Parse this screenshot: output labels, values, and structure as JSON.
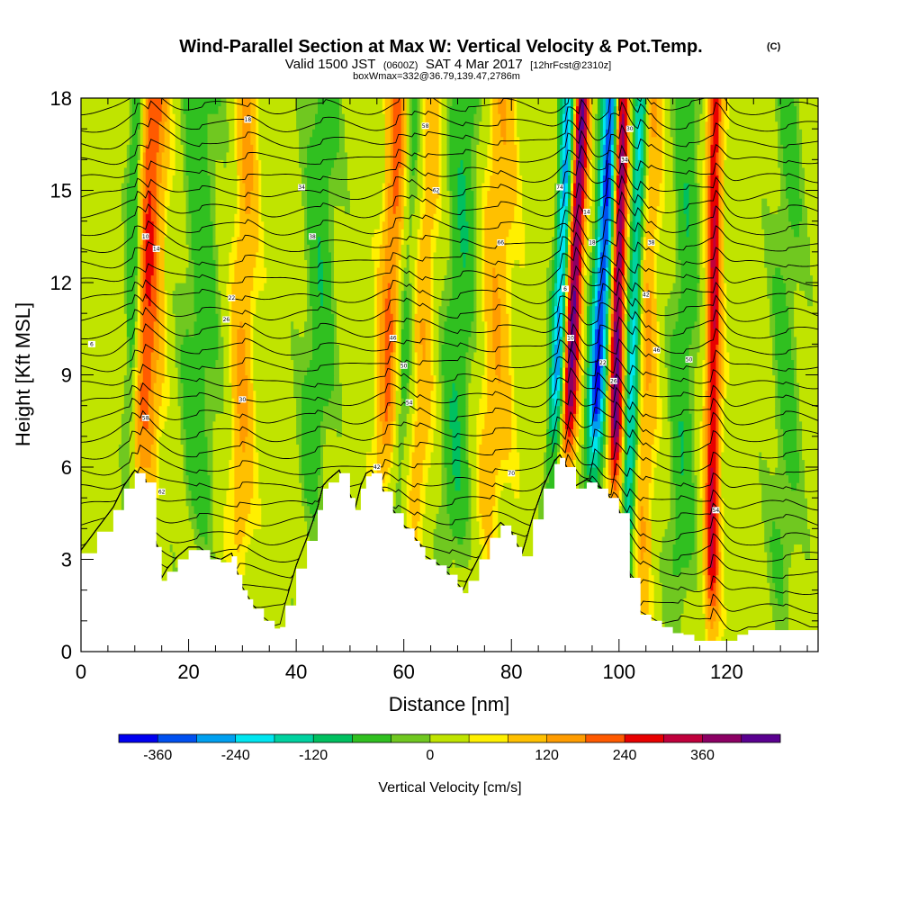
{
  "header": {
    "title_main": "Wind-Parallel Section at Max W: Vertical Velocity & Pot.Temp.",
    "title_mark": "(C)",
    "subtitle_a": "Valid 1500 JST",
    "subtitle_b": "(0600Z)",
    "subtitle_c": "SAT 4 Mar 2017",
    "subtitle_d": "[12hrFcst@2310z]",
    "boxline": "boxWmax=332@36.79,139.47,2786m"
  },
  "chart_data": {
    "type": "heatmap",
    "xlabel": "Distance [nm]",
    "ylabel": "Height [Kft MSL]",
    "xlim": [
      0,
      137
    ],
    "ylim": [
      0,
      18
    ],
    "x_ticks": [
      "0",
      "20",
      "40",
      "60",
      "80",
      "100",
      "120"
    ],
    "y_ticks": [
      "0",
      "3",
      "6",
      "9",
      "12",
      "15",
      "18"
    ],
    "colorbar": {
      "title": "Vertical Velocity [cm/s]",
      "tick_labels": [
        "-360",
        "-240",
        "-120",
        "0",
        "120",
        "240",
        "360"
      ],
      "levels": [
        -420,
        -360,
        -300,
        -240,
        -180,
        -120,
        -60,
        -30,
        30,
        60,
        120,
        180,
        240,
        300,
        360,
        420
      ],
      "colors": [
        "#0000f0",
        "#0050f0",
        "#00a0f0",
        "#00e6f0",
        "#00d2a0",
        "#00c060",
        "#30c020",
        "#70c820",
        "#c0e400",
        "#fff000",
        "#ffc000",
        "#ff9c00",
        "#ff5a00",
        "#e80000",
        "#c0003c",
        "#8c0064",
        "#5a0090"
      ]
    },
    "updraft_axes": [
      {
        "x": 11.5,
        "w": 2.8,
        "peak": 260,
        "lean": 0.15
      },
      {
        "x": 30,
        "w": 2.2,
        "peak": 120,
        "lean": 0.1
      },
      {
        "x": 57,
        "w": 2.0,
        "peak": 200,
        "lean": 0.2
      },
      {
        "x": 63,
        "w": 2.5,
        "peak": 110,
        "lean": 0.15
      },
      {
        "x": 77,
        "w": 3.0,
        "peak": 110,
        "lean": 0.1
      },
      {
        "x": 91,
        "w": 1.4,
        "peak": 420,
        "lean": 0.2
      },
      {
        "x": 99.5,
        "w": 1.3,
        "peak": 420,
        "lean": 0.1
      },
      {
        "x": 105,
        "w": 2.0,
        "peak": 120,
        "lean": 0.1
      },
      {
        "x": 117.5,
        "w": 1.4,
        "peak": 300,
        "lean": 0.03
      }
    ],
    "downdraft_axes": [
      {
        "x": 9.5,
        "w": 1.6,
        "peak": -220,
        "lean": 0.1
      },
      {
        "x": 22,
        "w": 3.5,
        "peak": -90,
        "lean": 0.05
      },
      {
        "x": 44,
        "w": 3.0,
        "peak": -100,
        "lean": 0.1
      },
      {
        "x": 60,
        "w": 2.0,
        "peak": -110,
        "lean": 0.2
      },
      {
        "x": 70,
        "w": 3.0,
        "peak": -110,
        "lean": 0.15
      },
      {
        "x": 88.5,
        "w": 1.3,
        "peak": -320,
        "lean": 0.2
      },
      {
        "x": 96,
        "w": 1.6,
        "peak": -420,
        "lean": 0.25
      },
      {
        "x": 102.5,
        "w": 1.3,
        "peak": -260,
        "lean": 0.15
      },
      {
        "x": 112,
        "w": 2.5,
        "peak": -100,
        "lean": 0.1
      },
      {
        "x": 131,
        "w": 3.0,
        "peak": -70,
        "lean": 0.05
      }
    ],
    "terrain": {
      "x": [
        0,
        3,
        6,
        8,
        10,
        12,
        14,
        15,
        16,
        18,
        20,
        22,
        24,
        26,
        28,
        29,
        30,
        31,
        32,
        34,
        36,
        37,
        38,
        40,
        42,
        44,
        45,
        46,
        48,
        50,
        51,
        52,
        53,
        54,
        56,
        58,
        60,
        62,
        63,
        64,
        66,
        68,
        70,
        71,
        72,
        74,
        76,
        78,
        80,
        81,
        82,
        84,
        86,
        88,
        89,
        90,
        92,
        94,
        96,
        98,
        100,
        102,
        104,
        106,
        108,
        110,
        112,
        114,
        116,
        118,
        120,
        122,
        124,
        126,
        128,
        130,
        132,
        134,
        137
      ],
      "y": [
        3.2,
        3.9,
        4.6,
        5.3,
        5.8,
        5.5,
        3.4,
        2.3,
        2.6,
        3.0,
        3.3,
        3.3,
        3.0,
        2.9,
        3.1,
        2.5,
        2.0,
        1.7,
        1.4,
        1.0,
        0.75,
        0.8,
        1.5,
        2.7,
        3.6,
        4.6,
        5.3,
        5.5,
        5.8,
        5.0,
        4.6,
        5.3,
        5.7,
        5.8,
        5.2,
        4.5,
        4.0,
        3.6,
        3.4,
        3.0,
        2.8,
        2.5,
        2.1,
        1.9,
        2.3,
        3.0,
        3.7,
        4.1,
        3.8,
        3.4,
        3.1,
        4.3,
        5.3,
        6.1,
        6.3,
        6.0,
        5.3,
        5.5,
        5.3,
        5.0,
        4.5,
        2.4,
        1.2,
        1.0,
        0.8,
        0.6,
        0.55,
        0.35,
        0.35,
        0.35,
        0.35,
        0.55,
        0.7,
        0.7,
        0.7,
        0.7,
        0.7,
        0.7,
        0.7
      ]
    },
    "theta_contour_labels": [
      "6",
      "10",
      "14",
      "18",
      "22",
      "26",
      "30",
      "34",
      "38",
      "42",
      "46",
      "50",
      "54",
      "58",
      "62",
      "66",
      "70",
      "74"
    ]
  },
  "colors": {
    "background": "#ffffff",
    "terrain_fill": "#ffffff",
    "contour_line": "#000000",
    "frame": "#000000"
  }
}
